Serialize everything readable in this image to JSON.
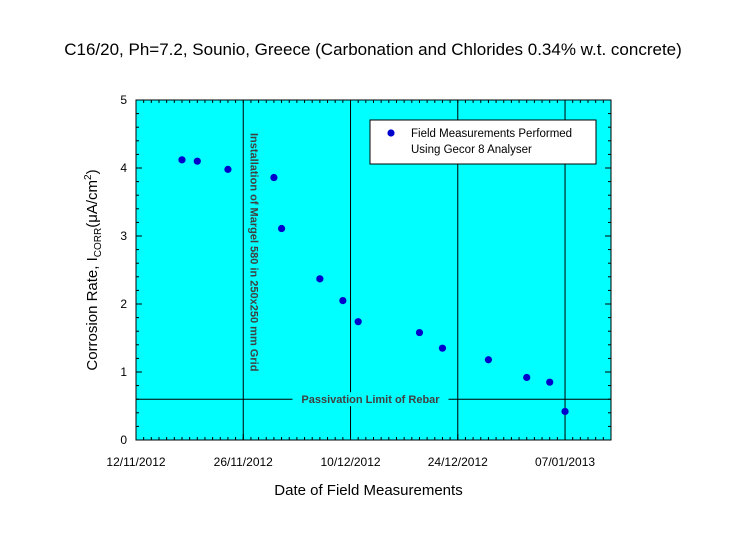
{
  "chart_data": {
    "type": "scatter",
    "title": "C16/20, Ph=7.2, Sounio, Greece (Carbonation and Chlorides 0.34% w.t. concrete)",
    "xlabel": "Date of Field Measurements",
    "ylabel_main": "Corrosion Rate, I",
    "ylabel_sub": "CORR",
    "ylabel_unit_open": "(μA/cm",
    "ylabel_unit_sup": "2",
    "ylabel_unit_close": ")",
    "xlim": [
      "2012-11-12",
      "2013-01-13"
    ],
    "ylim": [
      0,
      5
    ],
    "y_ticks": [
      "0",
      "1",
      "2",
      "3",
      "4",
      "5"
    ],
    "x_ticks": [
      {
        "date": "2012-11-12",
        "label": "12/11/2012"
      },
      {
        "date": "2012-11-26",
        "label": "26/11/2012"
      },
      {
        "date": "2012-12-10",
        "label": "10/12/2012"
      },
      {
        "date": "2012-12-24",
        "label": "24/12/2012"
      },
      {
        "date": "2013-01-07",
        "label": "07/01/2013"
      }
    ],
    "series": [
      {
        "name": "Field Measurements Performed Using Gecor 8 Analyser",
        "legend_lines": [
          "Field Measurements Performed",
          "Using Gecor 8 Analyser"
        ],
        "color": "#0000cc",
        "points": [
          {
            "x": "2012-11-18",
            "y": 4.12
          },
          {
            "x": "2012-11-20",
            "y": 4.1
          },
          {
            "x": "2012-11-24",
            "y": 3.98
          },
          {
            "x": "2012-11-30",
            "y": 3.86
          },
          {
            "x": "2012-12-01",
            "y": 3.11
          },
          {
            "x": "2012-12-06",
            "y": 2.37
          },
          {
            "x": "2012-12-09",
            "y": 2.05
          },
          {
            "x": "2012-12-11",
            "y": 1.74
          },
          {
            "x": "2012-12-19",
            "y": 1.58
          },
          {
            "x": "2012-12-22",
            "y": 1.35
          },
          {
            "x": "2012-12-28",
            "y": 1.18
          },
          {
            "x": "2013-01-02",
            "y": 0.92
          },
          {
            "x": "2013-01-05",
            "y": 0.85
          },
          {
            "x": "2013-01-07",
            "y": 0.42
          }
        ]
      }
    ],
    "passivation_limit": {
      "y": 0.6,
      "label": "Passivation Limit of Rebar"
    },
    "installation_marker": {
      "date": "2012-11-26",
      "label": "Installation of Margel 580 in 250x250 mm Grid"
    },
    "vertical_reference_lines": [
      "2012-11-26",
      "2012-12-10",
      "2012-12-24",
      "2013-01-07"
    ],
    "grid": false,
    "legend_position": "top-right",
    "colors": {
      "plot_background": "#00ffff",
      "marker": "#0000cc",
      "reference_lines": "#000000"
    }
  }
}
